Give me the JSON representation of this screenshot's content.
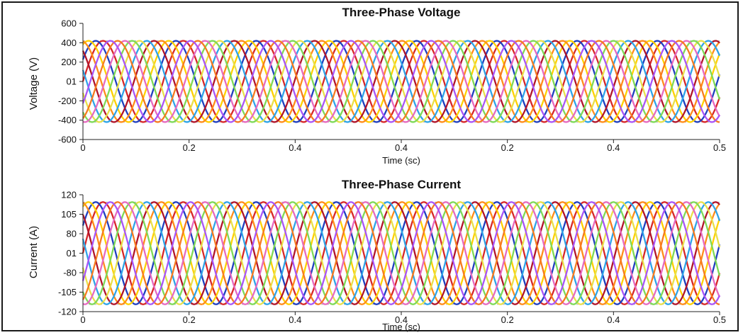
{
  "chart_data": [
    {
      "type": "line",
      "title": "Three-Phase Voltage",
      "xlabel": "Time (sc)",
      "ylabel": "Voltage (V)",
      "x_tick_labels": [
        "0",
        "0.2",
        "0.4",
        "0.4",
        "0.2",
        "0.4",
        "0.5"
      ],
      "y_tick_labels": [
        "600",
        "400",
        "200",
        "01",
        "-200",
        "-400",
        "-600"
      ],
      "ylim": [
        -600,
        600
      ],
      "xlim": [
        0,
        0.5
      ],
      "grid": false,
      "waveform": {
        "amplitude": 420,
        "period": 0.063,
        "count": 11
      },
      "colors": [
        "#d62728",
        "#1f3fbf",
        "#ffd000",
        "#ff8c1a",
        "#b0142a",
        "#2ea3e8",
        "#e8e04a",
        "#7ed957",
        "#e66ac0",
        "#f57b20",
        "#a855f7"
      ]
    },
    {
      "type": "line",
      "title": "Three-Phase Current",
      "xlabel": "Time (sc)",
      "ylabel": "Current (A)",
      "x_tick_labels": [
        "0",
        "0.2",
        "0.4",
        "0.4",
        "0.2",
        "0.4",
        "0.5"
      ],
      "y_tick_labels": [
        "120",
        "105",
        "80",
        "01",
        "-80",
        "-105",
        "-120"
      ],
      "ylim": [
        -120,
        120
      ],
      "xlim": [
        0,
        0.5
      ],
      "grid": false,
      "waveform": {
        "amplitude": 105,
        "period": 0.063,
        "count": 11
      },
      "colors": [
        "#d62728",
        "#1f3fbf",
        "#ffd000",
        "#ff8c1a",
        "#b0142a",
        "#2ea3e8",
        "#e8e04a",
        "#7ed957",
        "#e66ac0",
        "#f57b20",
        "#a855f7"
      ]
    }
  ]
}
